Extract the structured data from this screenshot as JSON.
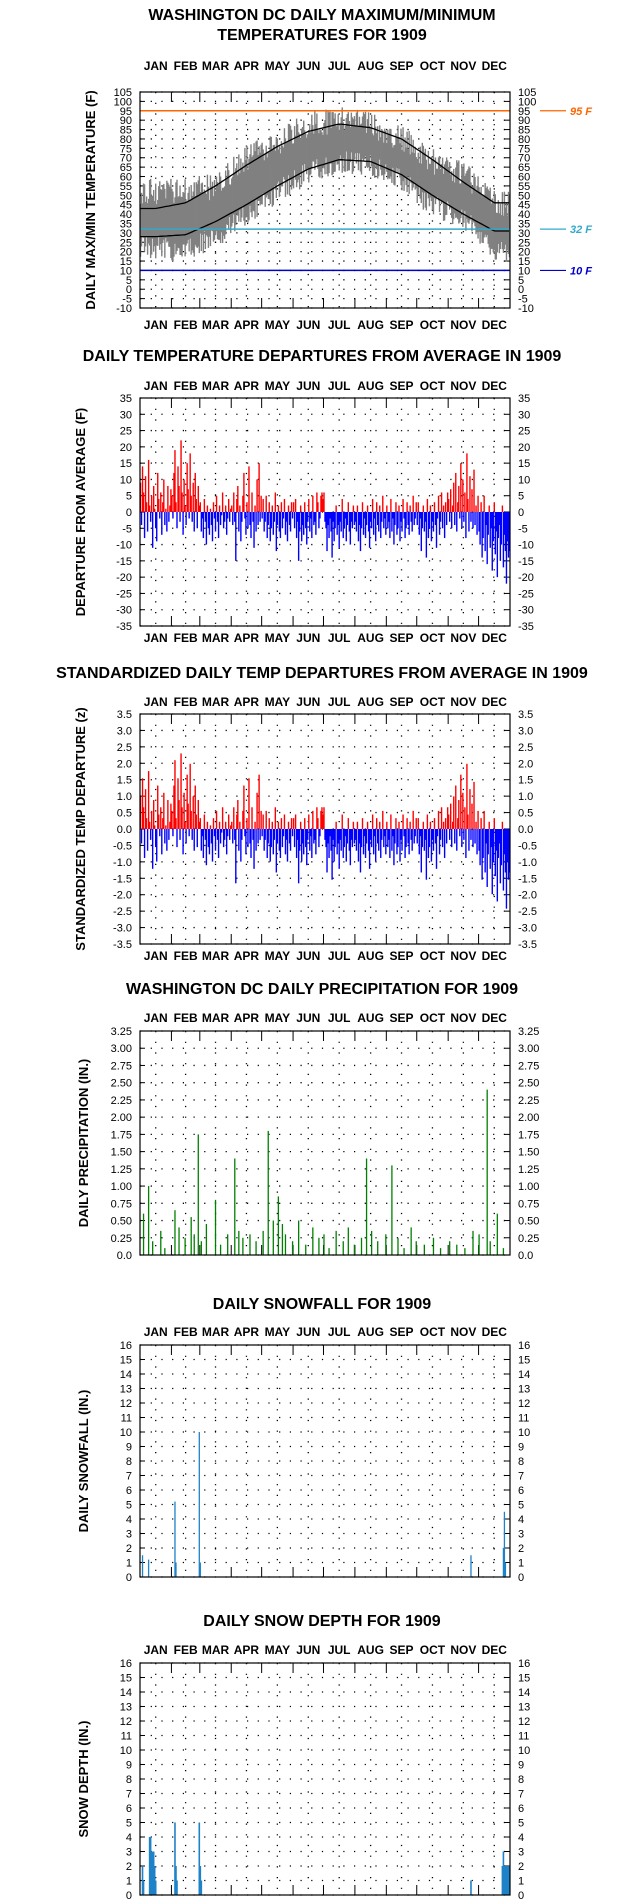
{
  "months": [
    "JAN",
    "FEB",
    "MAR",
    "APR",
    "MAY",
    "JUN",
    "JUL",
    "AUG",
    "SEP",
    "OCT",
    "NOV",
    "DEC"
  ],
  "colors": {
    "frame": "#000000",
    "tmax_tmin_fill": "#808080",
    "normal_curves": "#000000",
    "line_95": "#ff6600",
    "line_32": "#33aacc",
    "line_10": "#0000cc",
    "departure_positive": "#ff0000",
    "departure_negative": "#0000ff",
    "precipitation": "#008000",
    "snow": "#1e82c8"
  },
  "chart_data": [
    {
      "id": "maxmin",
      "type": "area",
      "title": [
        "WASHINGTON DC DAILY MAXIMUM/MINIMUM",
        "TEMPERATURES FOR 1909"
      ],
      "ylabel": "DAILY MAX/MIN TEMPERATURE (F)",
      "ylim": [
        -10,
        105
      ],
      "yticks": [
        "-10",
        "-5",
        "0",
        "5",
        "10",
        "15",
        "20",
        "25",
        "30",
        "35",
        "40",
        "45",
        "50",
        "55",
        "60",
        "65",
        "70",
        "75",
        "80",
        "85",
        "90",
        "95",
        "100",
        "105"
      ],
      "grid": true,
      "reference_lines": [
        {
          "label": "95 F",
          "value": 95
        },
        {
          "label": "32 F",
          "value": 32
        },
        {
          "label": "10 F",
          "value": 10
        }
      ],
      "series": [
        {
          "values_by_month_approx_high": [
            52,
            52,
            55,
            70,
            78,
            88,
            90,
            88,
            80,
            68,
            62,
            45
          ]
        },
        {
          "values_by_month_approx_low": [
            22,
            20,
            28,
            40,
            52,
            62,
            68,
            66,
            58,
            44,
            38,
            20
          ]
        },
        {
          "normal_high_anchors": [
            43,
            46,
            55,
            66,
            76,
            84,
            88,
            86,
            80,
            69,
            57,
            46
          ]
        },
        {
          "normal_low_anchors": [
            28,
            29,
            36,
            45,
            55,
            64,
            69,
            68,
            61,
            50,
            40,
            31
          ]
        }
      ]
    },
    {
      "id": "departure",
      "type": "bar",
      "title": [
        "DAILY TEMPERATURE DEPARTURES FROM AVERAGE IN 1909"
      ],
      "ylabel": "DEPARTURE FROM AVERAGE (F)",
      "ylim": [
        -35,
        35
      ],
      "yticks": [
        "-35",
        "-30",
        "-25",
        "-20",
        "-15",
        "-10",
        "-5",
        "0",
        "5",
        "10",
        "15",
        "20",
        "25",
        "30",
        "35"
      ],
      "grid": true,
      "monthly_departure_pattern": [
        [
          9,
          -4,
          14,
          6,
          -8,
          11,
          3,
          -6,
          16,
          2,
          -3,
          5,
          -11,
          8,
          1,
          -5,
          -9,
          12,
          4,
          -2,
          6,
          -7,
          3,
          10,
          -4,
          1,
          -6,
          8,
          -3,
          2,
          7
        ],
        [
          5,
          -2,
          12,
          19,
          3,
          -5,
          14,
          8,
          -3,
          22,
          6,
          -7,
          10,
          2,
          -4,
          15,
          7,
          -2,
          18,
          5,
          -3,
          9,
          -6,
          12,
          4,
          -5,
          8,
          2
        ],
        [
          3,
          -6,
          -2,
          -8,
          4,
          -3,
          -10,
          2,
          -5,
          -7,
          1,
          -4,
          -9,
          3,
          -2,
          -6,
          5,
          -3,
          -8,
          2,
          -4,
          -1,
          6,
          -5,
          -3,
          2,
          -7,
          -2,
          4,
          -3,
          1
        ],
        [
          2,
          -4,
          6,
          -3,
          -15,
          4,
          8,
          -6,
          2,
          -9,
          -3,
          5,
          12,
          -2,
          -7,
          3,
          -5,
          14,
          -4,
          -8,
          6,
          -3,
          -11,
          2,
          -6,
          10,
          -4,
          15,
          -3,
          5
        ],
        [
          -2,
          4,
          -6,
          -3,
          5,
          -8,
          -4,
          3,
          -9,
          -5,
          2,
          -7,
          -3,
          6,
          -12,
          -4,
          2,
          -6,
          -8,
          3,
          -5,
          -2,
          4,
          -7,
          -3,
          -9,
          2,
          -4,
          -6,
          3,
          -2
        ],
        [
          3,
          -5,
          4,
          -8,
          -3,
          -15,
          -6,
          2,
          -9,
          -4,
          -7,
          3,
          -5,
          -10,
          -3,
          4,
          -6,
          -2,
          -8,
          5,
          -4,
          -3,
          -7,
          6,
          3,
          -5,
          -2,
          5,
          6,
          4
        ],
        [
          6,
          -3,
          -5,
          -12,
          -4,
          -8,
          -2,
          -6,
          -14,
          -3,
          -9,
          -5,
          2,
          -7,
          -4,
          -11,
          -3,
          -6,
          4,
          -8,
          -5,
          -2,
          -9,
          -4,
          3,
          -6,
          -10,
          -3,
          -5,
          2,
          -4
        ],
        [
          -3,
          -6,
          2,
          -9,
          -4,
          -12,
          -5,
          3,
          -7,
          -2,
          -8,
          -4,
          2,
          -6,
          -11,
          -3,
          -5,
          4,
          -7,
          -2,
          -9,
          3,
          -4,
          -6,
          2,
          -8,
          -3,
          5,
          -5,
          -2,
          -7
        ],
        [
          2,
          -5,
          -3,
          -8,
          4,
          -6,
          -2,
          -10,
          -4,
          3,
          -7,
          -5,
          2,
          -9,
          -3,
          -6,
          4,
          -2,
          -8,
          -5,
          3,
          -4,
          -7,
          2,
          -3,
          -6,
          5,
          -4,
          -2,
          3
        ],
        [
          -4,
          3,
          -7,
          -2,
          -12,
          -5,
          2,
          -6,
          -3,
          -14,
          4,
          -8,
          -5,
          2,
          -9,
          -3,
          -6,
          3,
          -4,
          -11,
          -2,
          5,
          -7,
          -3,
          6,
          -5,
          2,
          -8,
          3,
          -4,
          6
        ],
        [
          4,
          -3,
          7,
          -5,
          2,
          9,
          -4,
          12,
          -6,
          3,
          8,
          -2,
          15,
          -5,
          10,
          -3,
          6,
          -8,
          18,
          4,
          -6,
          11,
          -3,
          7,
          -5,
          13,
          -4,
          2,
          -7,
          5
        ],
        [
          -6,
          -10,
          3,
          -14,
          -8,
          5,
          -12,
          -4,
          -16,
          -7,
          2,
          -11,
          -5,
          -18,
          -9,
          3,
          -13,
          -6,
          -20,
          -8,
          -4,
          -15,
          -10,
          2,
          -17,
          -7,
          -12,
          -22,
          -9,
          -14,
          -12
        ]
      ]
    },
    {
      "id": "standardized",
      "type": "bar",
      "title": [
        "STANDARDIZED DAILY TEMP DEPARTURES FROM AVERAGE IN 1909"
      ],
      "ylabel": "STANDARDIZED TEMP DEPARTURE (z)",
      "ylim": [
        -3.5,
        3.5
      ],
      "yticks": [
        "-3.5",
        "-3.0",
        "-2.5",
        "-2.0",
        "-1.5",
        "-1.0",
        "-0.5",
        "0.0",
        "0.5",
        "1.0",
        "1.5",
        "2.0",
        "2.5",
        "3.0",
        "3.5"
      ],
      "grid": true
    },
    {
      "id": "precip",
      "type": "bar",
      "title": [
        "WASHINGTON DC DAILY PRECIPITATION FOR 1909"
      ],
      "ylabel": "DAILY PRECIPITATION (IN.)",
      "ylim": [
        0,
        3.25
      ],
      "yticks": [
        "0.0",
        "0.25",
        "0.50",
        "0.75",
        "1.00",
        "1.25",
        "1.50",
        "1.75",
        "2.00",
        "2.25",
        "2.50",
        "2.75",
        "3.00",
        "3.25"
      ],
      "grid": true,
      "values": [
        [
          3,
          0.6
        ],
        [
          8,
          1.0
        ],
        [
          12,
          0.2
        ],
        [
          20,
          0.35
        ],
        [
          24,
          0.1
        ],
        [
          34,
          0.65
        ],
        [
          38,
          0.4
        ],
        [
          44,
          0.25
        ],
        [
          50,
          0.55
        ],
        [
          53,
          0.3
        ],
        [
          57,
          1.75
        ],
        [
          60,
          0.2
        ],
        [
          65,
          0.45
        ],
        [
          74,
          0.8
        ],
        [
          79,
          0.15
        ],
        [
          86,
          0.3
        ],
        [
          93,
          1.4
        ],
        [
          97,
          0.35
        ],
        [
          101,
          0.25
        ],
        [
          108,
          0.3
        ],
        [
          114,
          0.2
        ],
        [
          121,
          0.35
        ],
        [
          126,
          1.8
        ],
        [
          131,
          0.5
        ],
        [
          136,
          0.85
        ],
        [
          140,
          0.45
        ],
        [
          143,
          0.3
        ],
        [
          150,
          0.2
        ],
        [
          156,
          0.5
        ],
        [
          163,
          0.15
        ],
        [
          170,
          0.4
        ],
        [
          176,
          0.25
        ],
        [
          181,
          0.3
        ],
        [
          186,
          0.1
        ],
        [
          193,
          0.35
        ],
        [
          200,
          0.2
        ],
        [
          205,
          0.4
        ],
        [
          211,
          0.15
        ],
        [
          218,
          0.25
        ],
        [
          223,
          1.4
        ],
        [
          228,
          0.35
        ],
        [
          234,
          0.2
        ],
        [
          242,
          0.3
        ],
        [
          248,
          1.3
        ],
        [
          254,
          0.25
        ],
        [
          260,
          0.1
        ],
        [
          267,
          0.4
        ],
        [
          272,
          0.2
        ],
        [
          280,
          0.15
        ],
        [
          289,
          0.25
        ],
        [
          296,
          0.1
        ],
        [
          305,
          0.2
        ],
        [
          312,
          0.15
        ],
        [
          320,
          0.1
        ],
        [
          328,
          0.35
        ],
        [
          334,
          0.3
        ],
        [
          342,
          2.4
        ],
        [
          345,
          0.2
        ],
        [
          352,
          0.6
        ],
        [
          358,
          0.1
        ]
      ]
    },
    {
      "id": "snowfall",
      "type": "bar",
      "title": [
        "DAILY SNOWFALL FOR 1909"
      ],
      "ylabel": "DAILY SNOWFALL (IN.)",
      "ylim": [
        0,
        16
      ],
      "yticks": [
        "0",
        "1",
        "2",
        "3",
        "4",
        "5",
        "6",
        "7",
        "8",
        "9",
        "10",
        "11",
        "12",
        "13",
        "14",
        "15",
        "16"
      ],
      "grid": true,
      "values": [
        [
          2,
          1.5
        ],
        [
          8,
          1.2
        ],
        [
          34,
          5.2
        ],
        [
          35,
          1.0
        ],
        [
          58,
          10.0
        ],
        [
          59,
          1.0
        ],
        [
          326,
          1.5
        ],
        [
          358,
          2.0
        ],
        [
          359,
          4.5
        ],
        [
          360,
          1.0
        ]
      ]
    },
    {
      "id": "snowdepth",
      "type": "bar",
      "title": [
        "DAILY SNOW DEPTH FOR 1909"
      ],
      "ylabel": "SNOW DEPTH (IN.)",
      "ylim": [
        0,
        16
      ],
      "yticks": [
        "0",
        "1",
        "2",
        "3",
        "4",
        "5",
        "6",
        "7",
        "8",
        "9",
        "10",
        "11",
        "12",
        "13",
        "14",
        "15",
        "16"
      ],
      "grid": true,
      "values": [
        [
          2,
          2
        ],
        [
          3,
          1
        ],
        [
          9,
          4
        ],
        [
          10,
          4
        ],
        [
          11,
          3
        ],
        [
          12,
          3
        ],
        [
          13,
          3
        ],
        [
          14,
          2
        ],
        [
          15,
          1
        ],
        [
          34,
          5
        ],
        [
          35,
          2
        ],
        [
          36,
          1
        ],
        [
          58,
          5
        ],
        [
          59,
          2
        ],
        [
          60,
          1
        ],
        [
          326,
          1
        ],
        [
          357,
          2
        ],
        [
          358,
          3
        ],
        [
          359,
          2
        ],
        [
          360,
          2
        ],
        [
          361,
          2
        ],
        [
          362,
          2
        ],
        [
          363,
          2
        ],
        [
          364,
          2
        ]
      ]
    }
  ]
}
